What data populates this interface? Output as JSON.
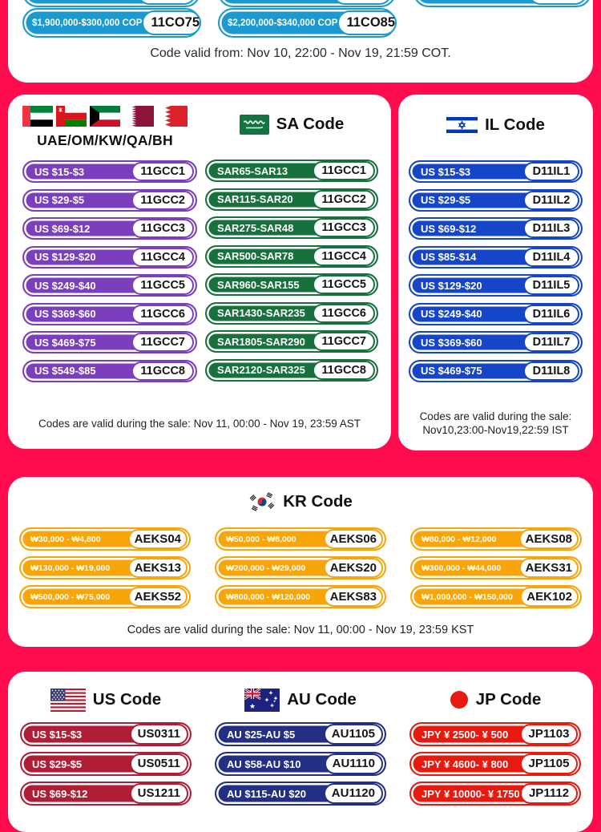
{
  "page_bg": "#FE0C4D",
  "top_card": {
    "pill_color": "#1B9AD2",
    "partial_pill_count": 3,
    "pills": [
      {
        "label": "$1,900,000-$300,000 COP",
        "code": "11CO75"
      },
      {
        "label": "$2,200,000-$340,000 COP",
        "code": "11CO85"
      }
    ],
    "validity": "Code valid from: Nov 10, 22:00 - Nov 19, 21:59 COT."
  },
  "gcc_sa_card": {
    "gcc": {
      "title": "UAE/OM/KW/QA/BH",
      "flag_icons": [
        "uae-flag-icon",
        "oman-flag-icon",
        "kuwait-flag-icon",
        "qatar-flag-icon",
        "bahrain-flag-icon"
      ],
      "pill_color": "#7B3EBC",
      "pills": [
        {
          "label": "US $15-$3",
          "code": "11GCC1"
        },
        {
          "label": "US $29-$5",
          "code": "11GCC2"
        },
        {
          "label": "US $69-$12",
          "code": "11GCC3"
        },
        {
          "label": "US $129-$20",
          "code": "11GCC4"
        },
        {
          "label": "US $249-$40",
          "code": "11GCC5"
        },
        {
          "label": "US $369-$60",
          "code": "11GCC6"
        },
        {
          "label": "US $469-$75",
          "code": "11GCC7"
        },
        {
          "label": "US $549-$85",
          "code": "11GCC8"
        }
      ]
    },
    "sa": {
      "title": "SA Code",
      "flag_icon": "saudi-arabia-flag-icon",
      "pill_color": "#17713C",
      "pills": [
        {
          "label": "SAR65-SAR13",
          "code": "11GCC1"
        },
        {
          "label": "SAR115-SAR20",
          "code": "11GCC2"
        },
        {
          "label": "SAR275-SAR48",
          "code": "11GCC3"
        },
        {
          "label": "SAR500-SAR78",
          "code": "11GCC4"
        },
        {
          "label": "SAR960-SAR155",
          "code": "11GCC5"
        },
        {
          "label": "SAR1430-SAR235",
          "code": "11GCC6"
        },
        {
          "label": "SAR1805-SAR290",
          "code": "11GCC7"
        },
        {
          "label": "SAR2120-SAR325",
          "code": "11GCC8"
        }
      ]
    },
    "validity": "Codes are valid during the sale: Nov 11, 00:00 - Nov 19, 23:59 AST"
  },
  "il_card": {
    "title": "IL Code",
    "flag_icon": "israel-flag-icon",
    "pill_color": "#1545C8",
    "pills": [
      {
        "label": "US $15-$3",
        "code": "D11IL1"
      },
      {
        "label": "US $29-$5",
        "code": "D11IL2"
      },
      {
        "label": "US $69-$12",
        "code": "D11IL3"
      },
      {
        "label": "US $85-$14",
        "code": "D11IL4"
      },
      {
        "label": "US $129-$20",
        "code": "D11IL5"
      },
      {
        "label": "US $249-$40",
        "code": "D11IL6"
      },
      {
        "label": "US $369-$60",
        "code": "D11IL7"
      },
      {
        "label": "US $469-$75",
        "code": "D11IL8"
      }
    ],
    "validity_line1": "Codes are valid during the sale:",
    "validity_line2": "Nov10,23:00-Nov19,22:59 IST"
  },
  "kr_card": {
    "title": "KR Code",
    "flag_icon": "south-korea-flag-icon",
    "pill_color": "#F7A509",
    "pills": [
      {
        "label": "₩30,000 - ₩4,800",
        "code": "AEKS04"
      },
      {
        "label": "₩50,000 - ₩8,000",
        "code": "AEKS06"
      },
      {
        "label": "₩80,000 - ₩12,000",
        "code": "AEKS08"
      },
      {
        "label": "₩130,000 - ₩19,000",
        "code": "AEKS13"
      },
      {
        "label": "₩200,000 - ₩29,000",
        "code": "AEKS20"
      },
      {
        "label": "₩300,000 - ₩44,000",
        "code": "AEKS31"
      },
      {
        "label": "₩500,000 - ₩75,000",
        "code": "AEKS52"
      },
      {
        "label": "₩800,000 - ₩120,000",
        "code": "AEKS83"
      },
      {
        "label": "₩1,000,000 - ₩150,000",
        "code": "AEK102"
      }
    ],
    "validity": "Codes are valid during the sale: Nov 11, 00:00 - Nov 19, 23:59 KST"
  },
  "bottom_card": {
    "columns": [
      {
        "title": "US Code",
        "flag_icon": "us-flag-icon",
        "pill_color": "#B01E36",
        "pills": [
          {
            "label": "US $15-$3",
            "code": "US0311"
          },
          {
            "label": "US $29-$5",
            "code": "US0511"
          },
          {
            "label": "US $69-$12",
            "code": "US1211"
          }
        ]
      },
      {
        "title": "AU Code",
        "flag_icon": "australia-flag-icon",
        "pill_color": "#232F85",
        "pills": [
          {
            "label": "AU $25-AU $5",
            "code": "AU1105"
          },
          {
            "label": "AU $58-AU $10",
            "code": "AU1110"
          },
          {
            "label": "AU $115-AU $20",
            "code": "AU1120"
          }
        ]
      },
      {
        "title": "JP Code",
        "flag_icon": "japan-flag-icon",
        "pill_color": "#E8190F",
        "pills": [
          {
            "label": "JPY ¥ 2500- ¥ 500",
            "code": "JP1103"
          },
          {
            "label": "JPY ¥ 4600- ¥ 800",
            "code": "JP1105"
          },
          {
            "label": "JPY ¥ 10000- ¥ 1750",
            "code": "JP1112"
          }
        ]
      }
    ]
  }
}
